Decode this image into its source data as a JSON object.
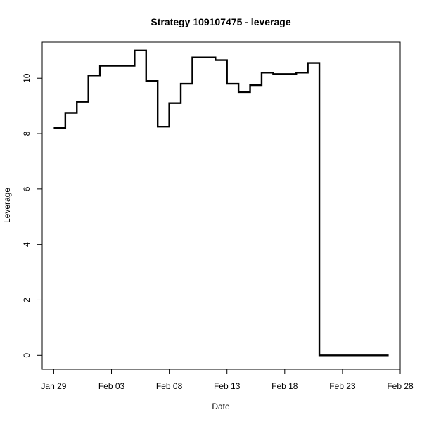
{
  "chart_data": {
    "type": "line",
    "step": true,
    "title": "Strategy 109107475 - leverage",
    "xlabel": "Date",
    "ylabel": "Leverage",
    "xlim": [
      "2015-01-28",
      "2015-02-28"
    ],
    "ylim": [
      -0.5,
      11.3
    ],
    "x_ticks": [
      {
        "x": "2015-01-29",
        "label": "Jan 29"
      },
      {
        "x": "2015-02-03",
        "label": "Feb 03"
      },
      {
        "x": "2015-02-08",
        "label": "Feb 08"
      },
      {
        "x": "2015-02-13",
        "label": "Feb 13"
      },
      {
        "x": "2015-02-18",
        "label": "Feb 18"
      },
      {
        "x": "2015-02-23",
        "label": "Feb 23"
      },
      {
        "x": "2015-02-28",
        "label": "Feb 28"
      }
    ],
    "y_ticks": [
      0,
      2,
      4,
      6,
      8,
      10
    ],
    "grid": false,
    "line_color": "#000000",
    "series": [
      {
        "points": [
          {
            "x": "2015-01-29",
            "y": 8.2
          },
          {
            "x": "2015-01-30",
            "y": 8.75
          },
          {
            "x": "2015-01-31",
            "y": 9.15
          },
          {
            "x": "2015-02-01",
            "y": 10.1
          },
          {
            "x": "2015-02-02",
            "y": 10.45
          },
          {
            "x": "2015-02-03",
            "y": 10.45
          },
          {
            "x": "2015-02-04",
            "y": 10.45
          },
          {
            "x": "2015-02-05",
            "y": 11.0
          },
          {
            "x": "2015-02-06",
            "y": 9.9
          },
          {
            "x": "2015-02-07",
            "y": 8.25
          },
          {
            "x": "2015-02-08",
            "y": 9.1
          },
          {
            "x": "2015-02-09",
            "y": 9.8
          },
          {
            "x": "2015-02-10",
            "y": 10.75
          },
          {
            "x": "2015-02-11",
            "y": 10.75
          },
          {
            "x": "2015-02-12",
            "y": 10.65
          },
          {
            "x": "2015-02-13",
            "y": 9.8
          },
          {
            "x": "2015-02-14",
            "y": 9.5
          },
          {
            "x": "2015-02-15",
            "y": 9.75
          },
          {
            "x": "2015-02-16",
            "y": 10.2
          },
          {
            "x": "2015-02-17",
            "y": 10.15
          },
          {
            "x": "2015-02-18",
            "y": 10.15
          },
          {
            "x": "2015-02-19",
            "y": 10.2
          },
          {
            "x": "2015-02-20",
            "y": 10.55
          },
          {
            "x": "2015-02-21",
            "y": 0.0
          },
          {
            "x": "2015-02-22",
            "y": 0.0
          },
          {
            "x": "2015-02-23",
            "y": 0.0
          },
          {
            "x": "2015-02-24",
            "y": 0.0
          },
          {
            "x": "2015-02-25",
            "y": 0.0
          },
          {
            "x": "2015-02-26",
            "y": 0.0
          },
          {
            "x": "2015-02-27",
            "y": 0.0
          }
        ]
      }
    ]
  }
}
